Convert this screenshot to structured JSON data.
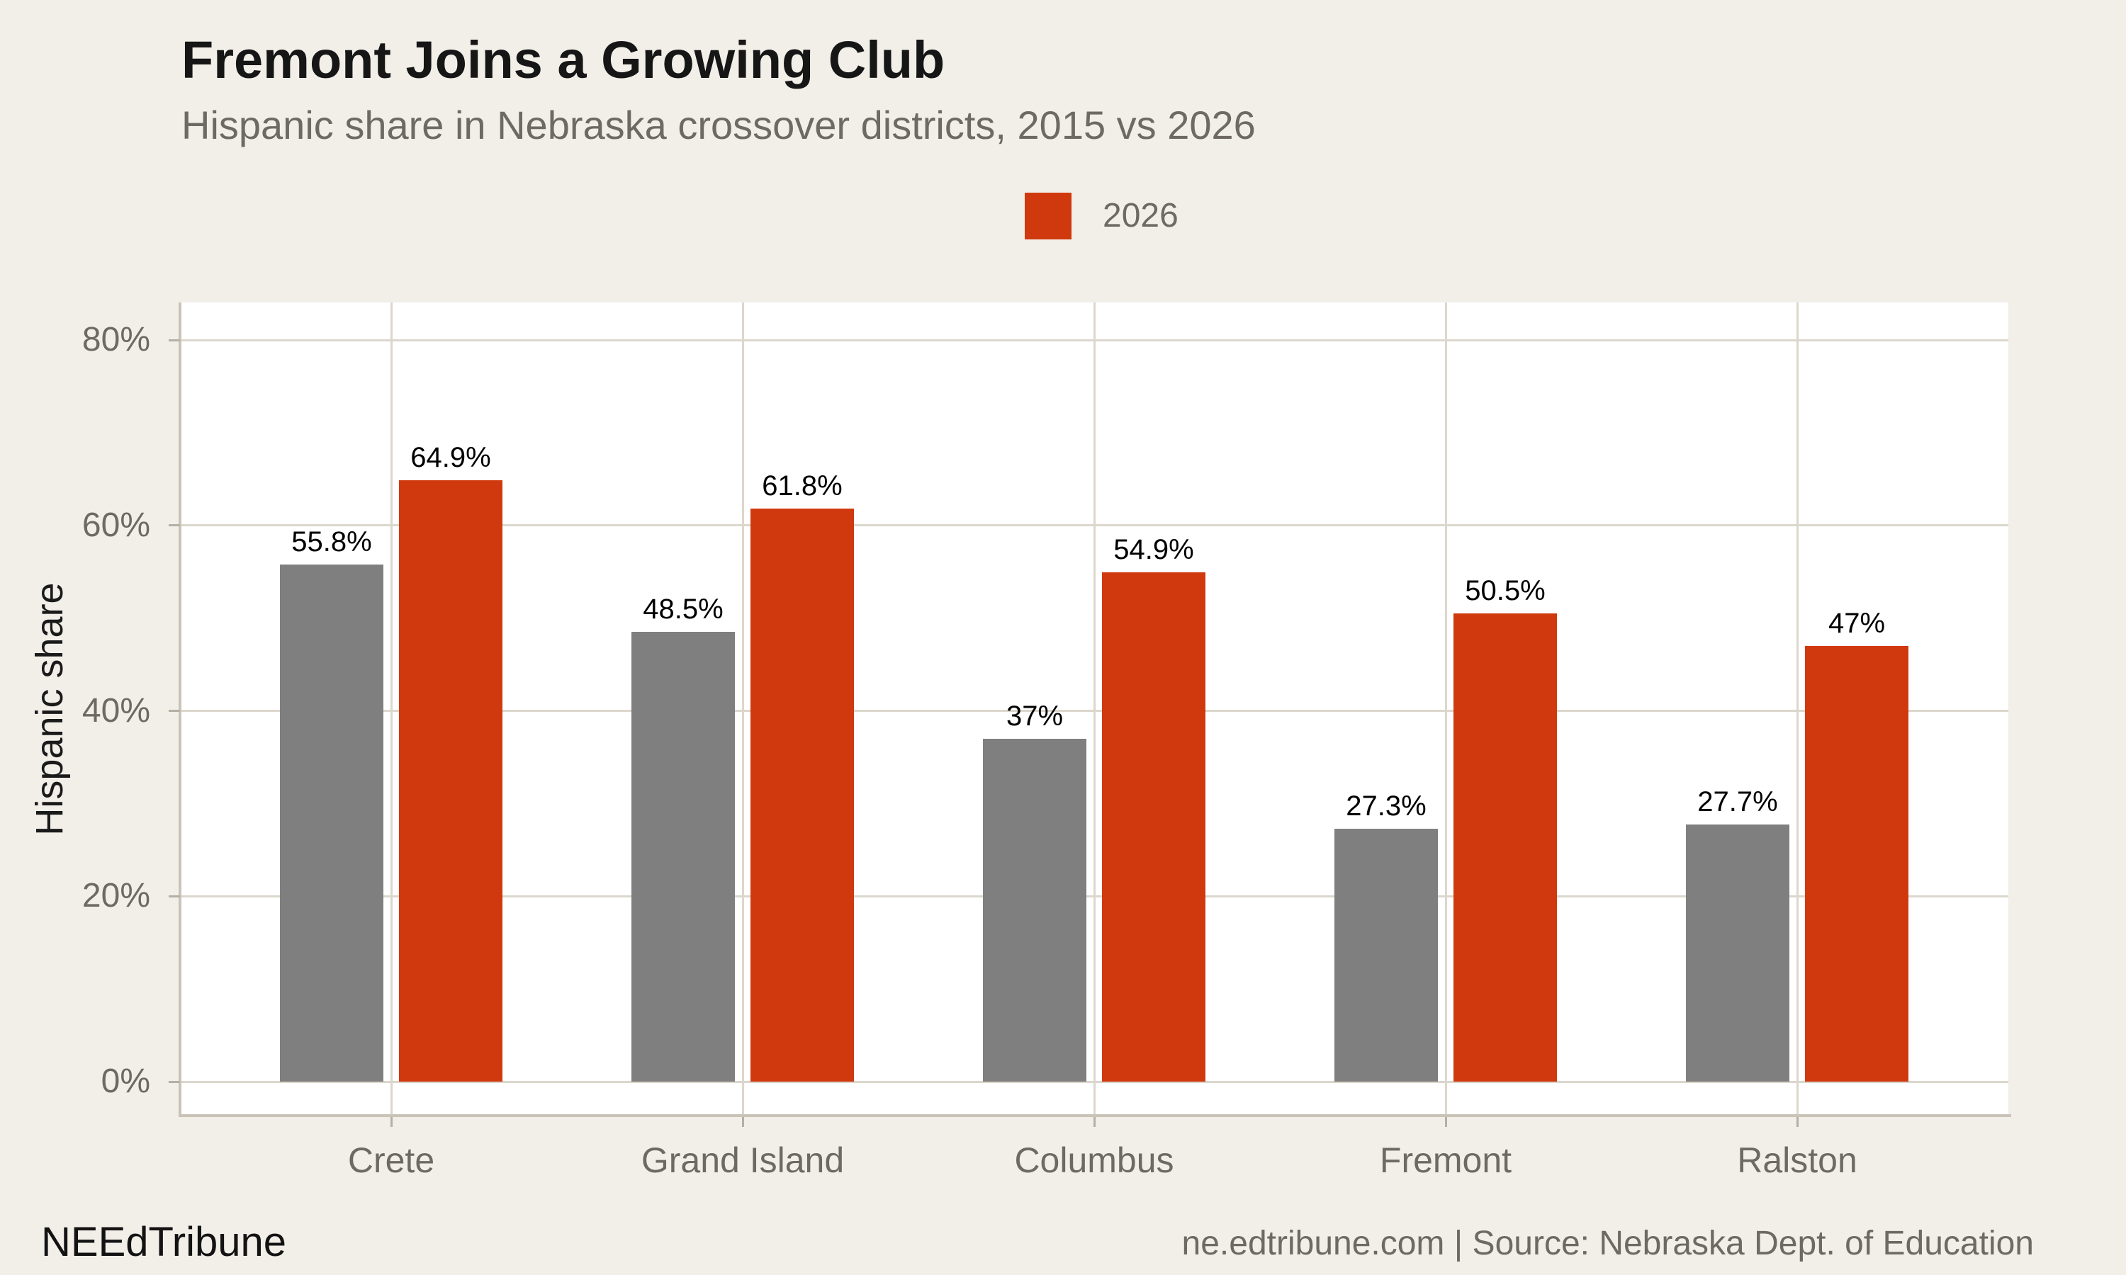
{
  "title": "Fremont Joins a Growing Club",
  "subtitle": "Hispanic share in Nebraska crossover districts, 2015 vs 2026",
  "legend": {
    "items": [
      {
        "label": "2026",
        "color": "#d0390e"
      }
    ]
  },
  "chart_data": {
    "type": "bar",
    "title": "Fremont Joins a Growing Club",
    "subtitle": "Hispanic share in Nebraska crossover districts, 2015 vs 2026",
    "categories": [
      "Crete",
      "Grand Island",
      "Columbus",
      "Fremont",
      "Ralston"
    ],
    "series": [
      {
        "name": "2015",
        "color": "#7f7f7f",
        "values": [
          55.8,
          48.5,
          37,
          27.3,
          27.7
        ],
        "labels": [
          "55.8%",
          "48.5%",
          "37%",
          "27.3%",
          "27.7%"
        ]
      },
      {
        "name": "2026",
        "color": "#d0390e",
        "values": [
          64.9,
          61.8,
          54.9,
          50.5,
          47
        ],
        "labels": [
          "64.9%",
          "61.8%",
          "54.9%",
          "50.5%",
          "47%"
        ]
      }
    ],
    "xlabel": "",
    "ylabel": "Hispanic share",
    "yticks": {
      "values": [
        0,
        20,
        40,
        60,
        80
      ],
      "labels": [
        "0%",
        "20%",
        "40%",
        "60%",
        "80%"
      ]
    },
    "ylim": [
      -3.8,
      84
    ],
    "grid": true,
    "legend_position": "top-center",
    "legend_visible_series": [
      "2026"
    ]
  },
  "footer": {
    "brand": "NEEdTribune",
    "source": "ne.edtribune.com | Source: Nebraska Dept. of Education"
  },
  "colors": {
    "background": "#f2efe9",
    "panel": "#ffffff",
    "bar_2015": "#7f7f7f",
    "bar_2026": "#d0390e",
    "gridline": "#dcd7cd",
    "axis_line": "#c9c3b8",
    "tick": "#b5afa4",
    "axis_text": "#6e6a63",
    "title_text": "#161616",
    "value_label_text": "#000000"
  }
}
